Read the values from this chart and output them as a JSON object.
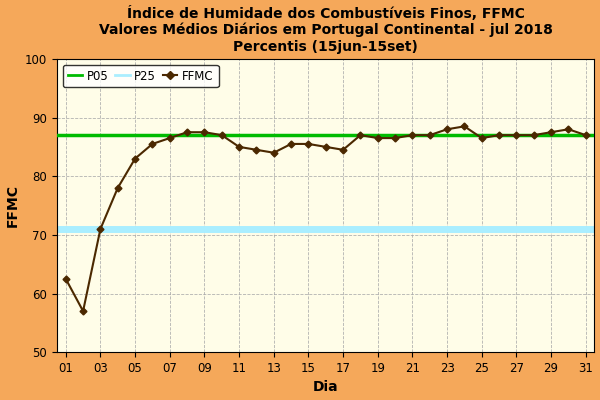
{
  "title": "Índice de Humidade dos Combustíveis Finos, FFMC\nValores Médios Diários em Portugal Continental - jul 2018\nPercentis (15jun-15set)",
  "xlabel": "Dia",
  "ylabel": "FFMC",
  "background_color": "#F5A85A",
  "plot_bg_color": "#FFFDE8",
  "ylim": [
    50,
    100
  ],
  "yticks": [
    50,
    60,
    70,
    80,
    90,
    100
  ],
  "days": [
    1,
    2,
    3,
    4,
    5,
    6,
    7,
    8,
    9,
    10,
    11,
    12,
    13,
    14,
    15,
    16,
    17,
    18,
    19,
    20,
    21,
    22,
    23,
    24,
    25,
    26,
    27,
    28,
    29,
    30,
    31
  ],
  "xtick_labels": [
    "01",
    "03",
    "05",
    "07",
    "09",
    "11",
    "13",
    "15",
    "17",
    "19",
    "21",
    "23",
    "25",
    "27",
    "29",
    "31"
  ],
  "xtick_positions": [
    1,
    3,
    5,
    7,
    9,
    11,
    13,
    15,
    17,
    19,
    21,
    23,
    25,
    27,
    29,
    31
  ],
  "ffmc_values": [
    62.5,
    57.0,
    71.0,
    78.0,
    83.0,
    85.5,
    86.5,
    87.5,
    87.5,
    87.0,
    85.0,
    84.5,
    84.0,
    85.5,
    85.5,
    85.0,
    84.5,
    87.0,
    86.5,
    86.5,
    87.0,
    87.0,
    88.0,
    88.5,
    86.5,
    87.0,
    87.0,
    87.0,
    87.5,
    88.0,
    87.0
  ],
  "p05_value": 87.0,
  "p25_value": 71.0,
  "p05_color": "#00BB00",
  "p25_color": "#AAEEFF",
  "ffmc_line_color": "#4B2800",
  "ffmc_marker": "D",
  "p05_linewidth": 2.5,
  "p25_linewidth": 5,
  "ffmc_linewidth": 1.5,
  "grid_color": "#AAAAAA",
  "title_fontsize": 10,
  "axis_label_fontsize": 10,
  "tick_fontsize": 8.5,
  "legend_fontsize": 8.5
}
